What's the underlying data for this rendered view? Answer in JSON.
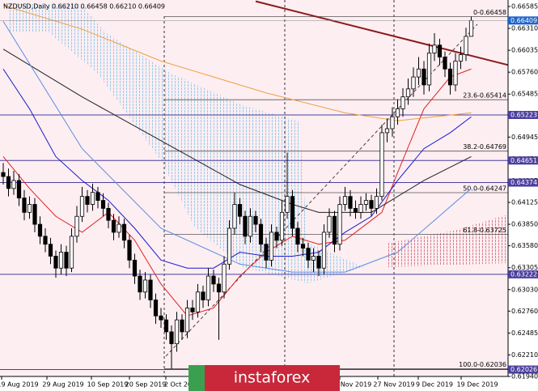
{
  "chart_data": {
    "type": "candlestick",
    "title": "NZDUSD,Daily  0.66210 0.66458 0.66210 0.66409",
    "ylim": [
      0.6194,
      0.66585
    ],
    "yticks": [
      0.66585,
      {
        "value": 0.6631,
        "label": "0.66310"
      },
      0.66035,
      {
        "value": 0.6576,
        "label": "0.65760"
      },
      0.65485,
      0.65215,
      0.64945,
      {
        "value": 0.6467,
        "label": "0.64670"
      },
      0.64395,
      0.64125,
      {
        "value": 0.6385,
        "label": "0.63850"
      },
      {
        "value": 0.6358,
        "label": "0.63580"
      },
      0.63305,
      {
        "value": 0.6303,
        "label": "0.63030"
      },
      {
        "value": 0.6276,
        "label": "0.62760"
      },
      0.62485,
      {
        "value": 0.6221,
        "label": "0.62210"
      },
      {
        "value": 0.6194,
        "label": "0.61940"
      }
    ],
    "date_labels": [
      "19 Aug 2019",
      "29 Aug 2019",
      "10 Sep 2019",
      "20 Sep 2019",
      "2 Oct 2019",
      "Nov 2019",
      "27 Nov 2019",
      "9 Dec 2019",
      "19 Dec 2019"
    ],
    "candles": [
      [
        0.645,
        0.6462,
        0.6435,
        0.6445
      ],
      [
        0.6445,
        0.6455,
        0.642,
        0.643
      ],
      [
        0.643,
        0.6452,
        0.6422,
        0.644
      ],
      [
        0.644,
        0.6448,
        0.6408,
        0.6418
      ],
      [
        0.6418,
        0.6428,
        0.639,
        0.64
      ],
      [
        0.64,
        0.642,
        0.6392,
        0.641
      ],
      [
        0.641,
        0.6418,
        0.6375,
        0.6385
      ],
      [
        0.6385,
        0.6395,
        0.636,
        0.637
      ],
      [
        0.637,
        0.638,
        0.635,
        0.636
      ],
      [
        0.636,
        0.6368,
        0.6335,
        0.6345
      ],
      [
        0.6345,
        0.6352,
        0.6318,
        0.633
      ],
      [
        0.633,
        0.636,
        0.6322,
        0.635
      ],
      [
        0.635,
        0.6358,
        0.632,
        0.633
      ],
      [
        0.633,
        0.638,
        0.6325,
        0.637
      ],
      [
        0.637,
        0.6408,
        0.6362,
        0.6395
      ],
      [
        0.6395,
        0.6432,
        0.6388,
        0.642
      ],
      [
        0.642,
        0.6428,
        0.64,
        0.641
      ],
      [
        0.641,
        0.6436,
        0.6402,
        0.6425
      ],
      [
        0.6425,
        0.6432,
        0.6405,
        0.6415
      ],
      [
        0.6415,
        0.6424,
        0.6395,
        0.6405
      ],
      [
        0.6405,
        0.6412,
        0.638,
        0.639
      ],
      [
        0.639,
        0.6398,
        0.6365,
        0.6375
      ],
      [
        0.6375,
        0.6395,
        0.6368,
        0.6385
      ],
      [
        0.6385,
        0.6392,
        0.6355,
        0.6365
      ],
      [
        0.6365,
        0.6372,
        0.633,
        0.634
      ],
      [
        0.634,
        0.6348,
        0.631,
        0.632
      ],
      [
        0.632,
        0.6328,
        0.629,
        0.63
      ],
      [
        0.63,
        0.6325,
        0.6292,
        0.6315
      ],
      [
        0.6315,
        0.6322,
        0.628,
        0.629
      ],
      [
        0.629,
        0.6298,
        0.626,
        0.627
      ],
      [
        0.627,
        0.628,
        0.6255,
        0.6265
      ],
      [
        0.6265,
        0.6272,
        0.624,
        0.625
      ],
      [
        0.625,
        0.6258,
        0.62036,
        0.6235
      ],
      [
        0.6235,
        0.6275,
        0.6225,
        0.6265
      ],
      [
        0.6265,
        0.6272,
        0.624,
        0.625
      ],
      [
        0.625,
        0.629,
        0.6242,
        0.628
      ],
      [
        0.628,
        0.629,
        0.6265,
        0.6275
      ],
      [
        0.6275,
        0.631,
        0.6268,
        0.63
      ],
      [
        0.63,
        0.6308,
        0.628,
        0.629
      ],
      [
        0.629,
        0.633,
        0.6282,
        0.632
      ],
      [
        0.632,
        0.6328,
        0.63,
        0.631
      ],
      [
        0.631,
        0.6318,
        0.624,
        0.63
      ],
      [
        0.63,
        0.6345,
        0.6292,
        0.6335
      ],
      [
        0.6335,
        0.639,
        0.6328,
        0.638
      ],
      [
        0.638,
        0.6425,
        0.6372,
        0.641
      ],
      [
        0.641,
        0.6418,
        0.6385,
        0.6395
      ],
      [
        0.6395,
        0.6402,
        0.636,
        0.637
      ],
      [
        0.637,
        0.6405,
        0.6362,
        0.6395
      ],
      [
        0.6395,
        0.6402,
        0.6375,
        0.6385
      ],
      [
        0.6385,
        0.6392,
        0.635,
        0.636
      ],
      [
        0.636,
        0.6368,
        0.633,
        0.634
      ],
      [
        0.634,
        0.6385,
        0.6332,
        0.6375
      ],
      [
        0.6375,
        0.6382,
        0.6355,
        0.6365
      ],
      [
        0.6365,
        0.6415,
        0.6358,
        0.64
      ],
      [
        0.64,
        0.6475,
        0.6392,
        0.642
      ],
      [
        0.642,
        0.6428,
        0.637,
        0.638
      ],
      [
        0.638,
        0.6388,
        0.635,
        0.636
      ],
      [
        0.636,
        0.6368,
        0.6345,
        0.6355
      ],
      [
        0.6355,
        0.6362,
        0.633,
        0.634
      ],
      [
        0.634,
        0.6355,
        0.6325,
        0.6345
      ],
      [
        0.6345,
        0.6352,
        0.632,
        0.633
      ],
      [
        0.633,
        0.6385,
        0.6322,
        0.6375
      ],
      [
        0.6375,
        0.6405,
        0.6368,
        0.6395
      ],
      [
        0.6395,
        0.6402,
        0.635,
        0.636
      ],
      [
        0.636,
        0.642,
        0.6352,
        0.641
      ],
      [
        0.641,
        0.6432,
        0.6402,
        0.642
      ],
      [
        0.642,
        0.6428,
        0.6395,
        0.6405
      ],
      [
        0.6405,
        0.6415,
        0.6392,
        0.64
      ],
      [
        0.64,
        0.642,
        0.6392,
        0.641
      ],
      [
        0.641,
        0.6424,
        0.6402,
        0.6415
      ],
      [
        0.6415,
        0.6422,
        0.6395,
        0.6405
      ],
      [
        0.6405,
        0.643,
        0.6398,
        0.642
      ],
      [
        0.642,
        0.651,
        0.6415,
        0.65
      ],
      [
        0.65,
        0.6518,
        0.6488,
        0.6505
      ],
      [
        0.6505,
        0.6532,
        0.6495,
        0.652
      ],
      [
        0.652,
        0.6542,
        0.651,
        0.653
      ],
      [
        0.653,
        0.6556,
        0.652,
        0.6545
      ],
      [
        0.6545,
        0.6568,
        0.6535,
        0.6555
      ],
      [
        0.6555,
        0.6582,
        0.6545,
        0.657
      ],
      [
        0.657,
        0.6595,
        0.656,
        0.658
      ],
      [
        0.658,
        0.659,
        0.6548,
        0.656
      ],
      [
        0.656,
        0.6612,
        0.6552,
        0.66
      ],
      [
        0.66,
        0.6625,
        0.659,
        0.661
      ],
      [
        0.661,
        0.6618,
        0.6585,
        0.6595
      ],
      [
        0.6595,
        0.6602,
        0.657,
        0.658
      ],
      [
        0.658,
        0.6588,
        0.6548,
        0.656
      ],
      [
        0.656,
        0.66,
        0.6552,
        0.659
      ],
      [
        0.659,
        0.6608,
        0.658,
        0.6598
      ],
      [
        0.6598,
        0.6632,
        0.659,
        0.6621
      ],
      [
        0.6621,
        0.66458,
        0.6621,
        0.66409
      ]
    ],
    "indicators": [
      {
        "color": "#e02020",
        "x": [
          0,
          5,
          10,
          15,
          20,
          25,
          30,
          35,
          40,
          45,
          50,
          55,
          60,
          65,
          70,
          72,
          75,
          80,
          85,
          89
        ],
        "values": [
          0.647,
          0.643,
          0.6395,
          0.6375,
          0.64,
          0.6365,
          0.631,
          0.627,
          0.628,
          0.632,
          0.635,
          0.637,
          0.636,
          0.6365,
          0.639,
          0.64,
          0.645,
          0.653,
          0.657,
          0.658
        ]
      },
      {
        "color": "#1a1acc",
        "x": [
          0,
          5,
          10,
          15,
          20,
          25,
          30,
          35,
          40,
          45,
          50,
          55,
          60,
          65,
          70,
          75,
          80,
          85,
          89
        ],
        "values": [
          0.658,
          0.653,
          0.647,
          0.644,
          0.6415,
          0.638,
          0.634,
          0.633,
          0.633,
          0.635,
          0.6345,
          0.6345,
          0.635,
          0.6375,
          0.6395,
          0.644,
          0.648,
          0.65,
          0.652
        ]
      },
      {
        "color": "#202020",
        "x": [
          0,
          15,
          30,
          45,
          55,
          60,
          70,
          80,
          89
        ],
        "values": [
          0.6605,
          0.6545,
          0.649,
          0.6435,
          0.641,
          0.64,
          0.64,
          0.644,
          0.647
        ]
      },
      {
        "color": "#5a8de0",
        "x": [
          0,
          15,
          30,
          45,
          55,
          65,
          75,
          89
        ],
        "values": [
          0.664,
          0.648,
          0.638,
          0.6335,
          0.6325,
          0.6325,
          0.635,
          0.643
        ]
      },
      {
        "color": "#f0a040",
        "x": [
          0,
          15,
          30,
          50,
          65,
          75,
          89
        ],
        "values": [
          0.666,
          0.663,
          0.659,
          0.655,
          0.6525,
          0.6515,
          0.6525
        ]
      }
    ],
    "trendline": {
      "color": "#8b1a1a",
      "x": [
        48,
        96
      ],
      "values": [
        0.6665,
        0.6585
      ]
    },
    "fibo": [
      {
        "value": 0.66458,
        "label": "0-0.66458"
      },
      {
        "value": 0.65414,
        "label": "23.6-0.65414"
      },
      {
        "value": 0.64769,
        "label": "38.2-0.64769"
      },
      {
        "value": 0.64247,
        "label": "50.0-0.64247"
      },
      {
        "value": 0.63725,
        "label": "61.8-0.63725"
      },
      {
        "value": 0.62036,
        "label": "100.0-0.62036"
      }
    ],
    "levels": [
      0.65223,
      0.64651,
      0.64374,
      0.63222,
      0.62026
    ],
    "last_price": 0.66409,
    "watermark": "instaforex"
  }
}
